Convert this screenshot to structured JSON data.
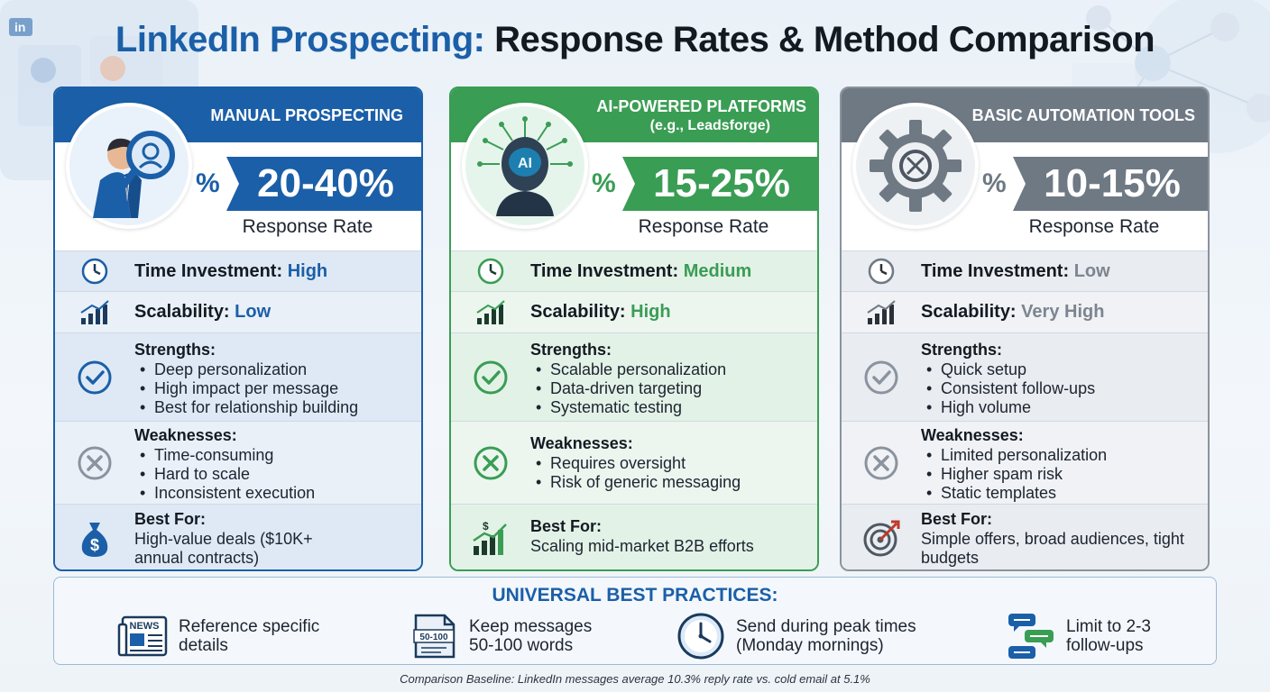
{
  "header": {
    "title_part1": "LinkedIn Prospecting:",
    "title_part2": "Response Rates & Method Comparison"
  },
  "colors": {
    "manual": "#1b5fa8",
    "ai": "#3a9d54",
    "basic": "#6f7984"
  },
  "cards": [
    {
      "title": "MANUAL PROSPECTING",
      "subtitle": "",
      "hero_icon": "businessman-magnifier-icon",
      "percent_sign": "%",
      "rate": "20-40%",
      "rate_label": "Response Rate",
      "time_label": "Time Investment:",
      "time_value": "High",
      "scal_label": "Scalability:",
      "scal_value": "Low",
      "strengths_label": "Strengths:",
      "strengths": [
        "Deep personalization",
        "High impact per message",
        "Best for relationship building"
      ],
      "weaknesses_label": "Weaknesses:",
      "weaknesses": [
        "Time-consuming",
        "Hard to scale",
        "Inconsistent execution"
      ],
      "best_label": "Best For:",
      "best": "High-value deals ($10K+ annual contracts)",
      "best_icon": "money-bag-icon"
    },
    {
      "title": "AI-POWERED PLATFORMS",
      "subtitle": "(e.g., Leadsforge)",
      "hero_icon": "ai-robot-icon",
      "hero_text": "AI",
      "percent_sign": "%",
      "rate": "15-25%",
      "rate_label": "Response Rate",
      "time_label": "Time Investment:",
      "time_value": "Medium",
      "scal_label": "Scalability:",
      "scal_value": "High",
      "strengths_label": "Strengths:",
      "strengths": [
        "Scalable personalization",
        "Data-driven targeting",
        "Systematic testing"
      ],
      "weaknesses_label": "Weaknesses:",
      "weaknesses": [
        "Requires oversight",
        "Risk of generic messaging"
      ],
      "best_label": "Best For:",
      "best": "Scaling mid-market B2B efforts",
      "best_icon": "growth-chart-icon",
      "best_icon_text": "$"
    },
    {
      "title": "BASIC AUTOMATION TOOLS",
      "subtitle": "",
      "hero_icon": "gear-icon",
      "percent_sign": "%",
      "rate": "10-15%",
      "rate_label": "Response Rate",
      "time_label": "Time Investment:",
      "time_value": "Low",
      "scal_label": "Scalability:",
      "scal_value": "Very High",
      "strengths_label": "Strengths:",
      "strengths": [
        "Quick setup",
        "Consistent follow-ups",
        "High volume"
      ],
      "weaknesses_label": "Weaknesses:",
      "weaknesses": [
        "Limited personalization",
        "Higher spam risk",
        "Static templates"
      ],
      "best_label": "Best For:",
      "best": "Simple offers, broad audiences, tight budgets",
      "best_icon": "target-icon"
    }
  ],
  "practices": {
    "title": "UNIVERSAL BEST PRACTICES:",
    "items": [
      {
        "icon": "newspaper-icon",
        "icon_text": "NEWS",
        "text": "Reference specific details"
      },
      {
        "icon": "document-icon",
        "icon_text": "50-100",
        "text": "Keep messages 50-100 words"
      },
      {
        "icon": "clock-icon",
        "text": "Send during peak times (Monday mornings)"
      },
      {
        "icon": "chat-bubbles-icon",
        "text": "Limit to 2-3 follow-ups"
      }
    ]
  },
  "footnote": "Comparison Baseline: LinkedIn messages average 10.3% reply rate vs. cold email at 5.1%",
  "decor": {
    "linkedin_badge": "in"
  }
}
